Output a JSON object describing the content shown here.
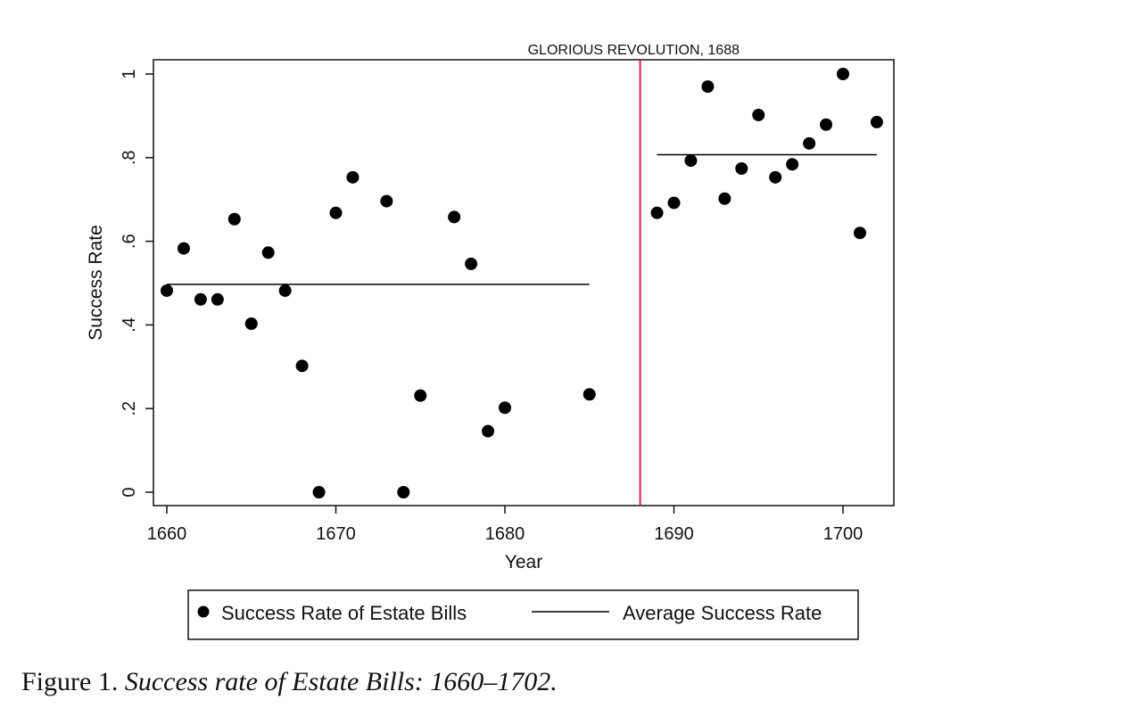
{
  "chart_data": {
    "type": "scatter",
    "xlabel": "Year",
    "ylabel": "Success Rate",
    "xlim": [
      1660,
      1702
    ],
    "ylim": [
      0,
      1
    ],
    "x_ticks": [
      1660,
      1670,
      1680,
      1690,
      1700
    ],
    "x_tick_labels": [
      "1660",
      "1670",
      "1680",
      "1690",
      "1700"
    ],
    "y_ticks": [
      0,
      0.2,
      0.4,
      0.6,
      0.8,
      1
    ],
    "y_tick_labels": [
      "0",
      ".2",
      ".4",
      ".6",
      ".8",
      "1"
    ],
    "grid": false,
    "legend_position": "bottom",
    "series": [
      {
        "name": "Success Rate of Estate Bills",
        "kind": "scatter",
        "color": "#000000",
        "points": [
          [
            1660,
            0.482
          ],
          [
            1661,
            0.583
          ],
          [
            1662,
            0.461
          ],
          [
            1663,
            0.461
          ],
          [
            1664,
            0.653
          ],
          [
            1665,
            0.403
          ],
          [
            1666,
            0.573
          ],
          [
            1667,
            0.482
          ],
          [
            1668,
            0.302
          ],
          [
            1669,
            0.0
          ],
          [
            1670,
            0.668
          ],
          [
            1671,
            0.753
          ],
          [
            1673,
            0.696
          ],
          [
            1674,
            0.0
          ],
          [
            1675,
            0.231
          ],
          [
            1677,
            0.658
          ],
          [
            1678,
            0.546
          ],
          [
            1679,
            0.146
          ],
          [
            1680,
            0.202
          ],
          [
            1685,
            0.234
          ],
          [
            1689,
            0.668
          ],
          [
            1690,
            0.692
          ],
          [
            1691,
            0.793
          ],
          [
            1692,
            0.97
          ],
          [
            1693,
            0.702
          ],
          [
            1694,
            0.774
          ],
          [
            1695,
            0.902
          ],
          [
            1696,
            0.753
          ],
          [
            1697,
            0.784
          ],
          [
            1698,
            0.834
          ],
          [
            1699,
            0.879
          ],
          [
            1700,
            1.0
          ],
          [
            1701,
            0.62
          ],
          [
            1702,
            0.885
          ]
        ]
      },
      {
        "name": "Average Success Rate",
        "kind": "segments",
        "color": "#000000",
        "segments": [
          {
            "x": [
              1660,
              1685
            ],
            "y": 0.497
          },
          {
            "x": [
              1689,
              1702
            ],
            "y": 0.807
          }
        ]
      }
    ],
    "annotations": [
      {
        "type": "vline",
        "x": 1688,
        "color": "#d81b4a",
        "label": "GLORIOUS REVOLUTION, 1688"
      }
    ]
  },
  "caption": {
    "label": "Figure 1. ",
    "title": "Success rate of Estate Bills: 1660–1702."
  }
}
